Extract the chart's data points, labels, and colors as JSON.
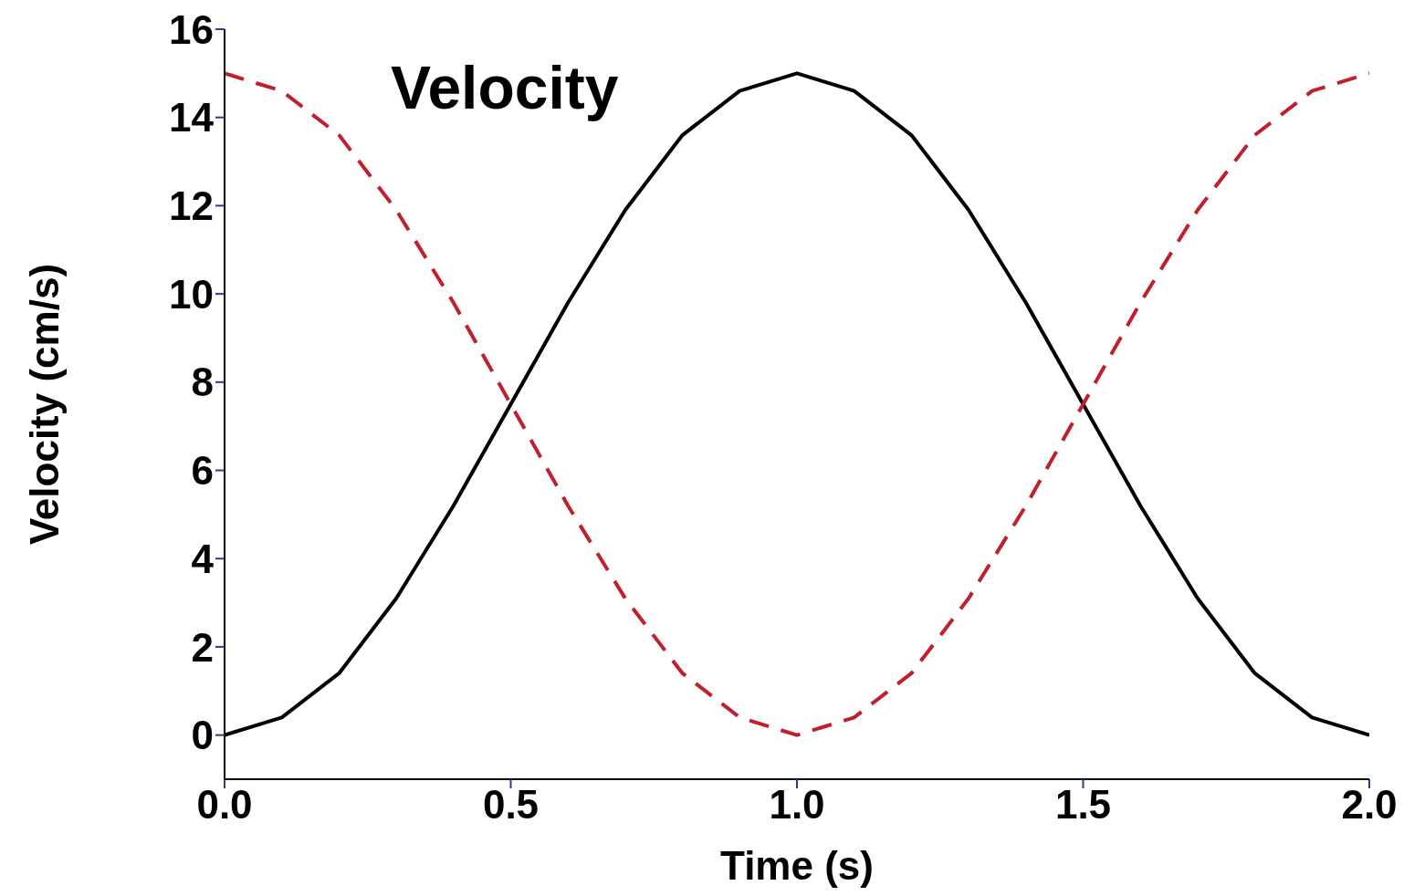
{
  "chart_data": {
    "type": "line",
    "title": "Velocity",
    "xlabel": "Time (s)",
    "ylabel": "Velocity (cm/s)",
    "x": [
      0,
      0.1,
      0.2,
      0.3,
      0.4,
      0.5,
      0.6,
      0.7,
      0.8,
      0.9,
      1.0,
      1.1,
      1.2,
      1.3,
      1.4,
      1.5,
      1.6,
      1.7,
      1.8,
      1.9,
      2.0
    ],
    "series": [
      {
        "color": "#000000",
        "line_style": "solid",
        "values": [
          0,
          0.4,
          1.4,
          3.1,
          5.2,
          7.5,
          9.8,
          11.9,
          13.6,
          14.6,
          15,
          14.6,
          13.6,
          11.9,
          9.8,
          7.5,
          5.2,
          3.1,
          1.4,
          0.4,
          0
        ]
      },
      {
        "color": "#c01f2b",
        "line_style": "dashed",
        "values": [
          15,
          14.6,
          13.6,
          11.9,
          9.8,
          7.5,
          5.2,
          3.1,
          1.4,
          0.4,
          0,
          0.4,
          1.4,
          3.1,
          5.2,
          7.5,
          9.8,
          11.9,
          13.6,
          14.6,
          15
        ]
      }
    ],
    "xlim": [
      0,
      2
    ],
    "xticks": [
      {
        "value": 0,
        "label": "0.0"
      },
      {
        "value": 0.5,
        "label": "0.5"
      },
      {
        "value": 1,
        "label": "1.0"
      },
      {
        "value": 1.5,
        "label": "1.5"
      },
      {
        "value": 2,
        "label": "2.0"
      }
    ],
    "ylim": [
      -1,
      16
    ],
    "yticks": [
      0,
      2,
      4,
      6,
      8,
      10,
      12,
      14,
      16
    ],
    "grid": false,
    "legend": false,
    "marker": "none"
  }
}
